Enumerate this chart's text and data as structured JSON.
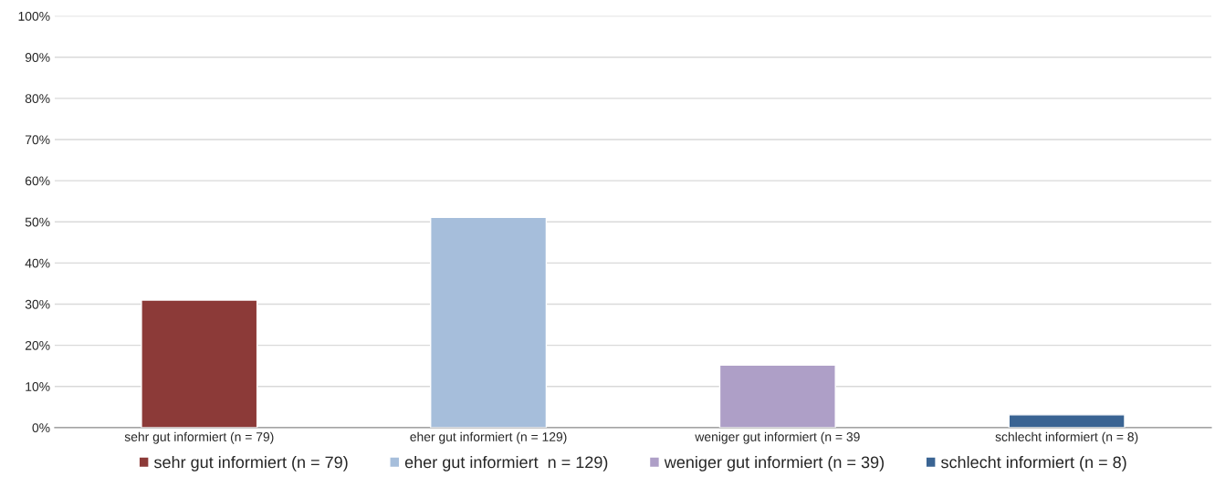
{
  "chart_data": {
    "type": "bar",
    "categories": [
      "sehr gut informiert (n = 79)",
      "eher gut informiert (n = 129)",
      "weniger gut informiert (n = 39",
      "schlecht informiert (n = 8)"
    ],
    "series": [
      {
        "name": "sehr gut informiert (n = 79)",
        "color": "#8c3a38",
        "values": [
          31,
          null,
          null,
          null
        ]
      },
      {
        "name": "eher gut informiert  n = 129)",
        "color": "#a6bedb",
        "values": [
          null,
          51.1,
          null,
          null
        ]
      },
      {
        "name": "weniger gut informiert (n = 39)",
        "color": "#ae9fc7",
        "values": [
          null,
          null,
          15.2,
          null
        ]
      },
      {
        "name": "schlecht informiert (n = 8)",
        "color": "#3a6493",
        "values": [
          null,
          null,
          null,
          3.1
        ]
      }
    ],
    "ylim": [
      0,
      100
    ],
    "yticks": [
      {
        "value": 0,
        "label": "0%"
      },
      {
        "value": 10,
        "label": "10%"
      },
      {
        "value": 20,
        "label": "20%"
      },
      {
        "value": 30,
        "label": "30%"
      },
      {
        "value": 40,
        "label": "40%"
      },
      {
        "value": 50,
        "label": "50%"
      },
      {
        "value": 60,
        "label": "60%"
      },
      {
        "value": 70,
        "label": "70%"
      },
      {
        "value": 80,
        "label": "80%"
      },
      {
        "value": 90,
        "label": "90%"
      },
      {
        "value": 100,
        "label": "100%"
      }
    ],
    "grid": "y",
    "legend": "bottom"
  }
}
